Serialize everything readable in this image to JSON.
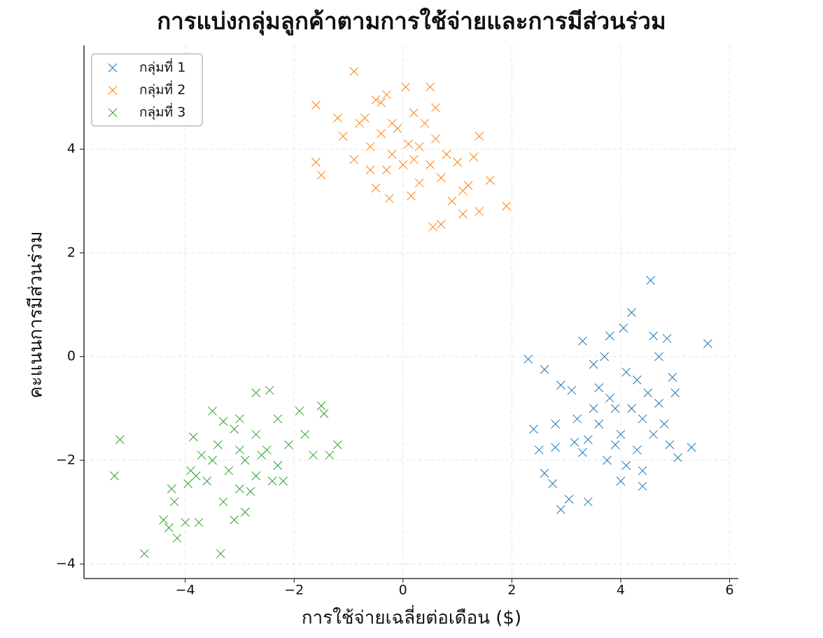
{
  "chart_data": {
    "type": "scatter",
    "title": "การแบ่งกลุ่มลูกค้าตามการใช้จ่ายและการมีส่วนร่วม",
    "x_label": "การใช้จ่ายเฉลี่ยต่อเดือน ($)",
    "y_label": "คะแนนการมีส่วนร่วม",
    "xlim": [
      -5.86,
      6.16
    ],
    "ylim": [
      -4.28,
      6.0
    ],
    "xticks": [
      {
        "value": -4,
        "label": "−4"
      },
      {
        "value": -2,
        "label": "−2"
      },
      0,
      2,
      4,
      6
    ],
    "yticks": [
      {
        "value": -4,
        "label": "−4"
      },
      {
        "value": -2,
        "label": "−2"
      },
      0,
      2,
      4
    ],
    "grid": true,
    "legend": "upper left",
    "marker": "x",
    "series": [
      {
        "name": "กลุ่มที่ 1",
        "color": "#1f77b4",
        "x": [
          2.3,
          2.6,
          2.4,
          2.5,
          2.6,
          2.75,
          2.9,
          3.05,
          3.4,
          3.3,
          3.8,
          4.05,
          4.2,
          4.55,
          5.6,
          4.6,
          4.85,
          4.7,
          4.95,
          5.0,
          5.3,
          5.05,
          4.9,
          4.4,
          4.0,
          3.75,
          3.3,
          3.15,
          2.8,
          2.8,
          2.9,
          3.1,
          3.5,
          3.7,
          4.1,
          4.3,
          4.5,
          4.2,
          3.9,
          3.6,
          3.4,
          4.0,
          4.3,
          4.6,
          4.8,
          3.8,
          4.4,
          3.6,
          4.1,
          4.4,
          3.9,
          4.7,
          3.2,
          3.5
        ],
        "values": [
          -0.05,
          -0.25,
          -1.4,
          -1.8,
          -2.25,
          -2.45,
          -2.95,
          -2.75,
          -2.8,
          0.3,
          0.4,
          0.55,
          0.85,
          1.47,
          0.25,
          0.4,
          0.35,
          0.0,
          -0.4,
          -0.7,
          -1.75,
          -1.95,
          -1.7,
          -2.5,
          -2.4,
          -2.0,
          -1.85,
          -1.65,
          -1.75,
          -1.3,
          -0.55,
          -0.65,
          -0.15,
          0.0,
          -0.3,
          -0.45,
          -0.7,
          -1.0,
          -1.0,
          -1.3,
          -1.6,
          -1.5,
          -1.8,
          -1.5,
          -1.3,
          -0.8,
          -1.2,
          -0.6,
          -2.1,
          -2.2,
          -1.7,
          -0.9,
          -1.2,
          -1.0
        ]
      },
      {
        "name": "กลุ่มที่ 2",
        "color": "#ff7f0e",
        "x": [
          -0.9,
          -1.6,
          -1.6,
          -1.5,
          -1.1,
          -0.9,
          -0.7,
          -0.5,
          -0.3,
          0.05,
          0.5,
          0.6,
          0.2,
          -0.2,
          -0.4,
          -0.6,
          0.1,
          0.3,
          0.6,
          0.8,
          1.0,
          1.3,
          1.4,
          1.6,
          1.9,
          1.4,
          1.1,
          0.7,
          0.55,
          0.15,
          -0.25,
          -0.5,
          -0.3,
          0.0,
          0.3,
          0.7,
          0.9,
          1.1,
          -0.8,
          -0.1,
          0.4,
          -0.6,
          0.2,
          -0.2,
          0.5,
          1.2,
          -1.2,
          -0.4
        ],
        "values": [
          5.5,
          4.85,
          3.75,
          3.5,
          4.25,
          3.8,
          4.6,
          4.95,
          5.05,
          5.2,
          5.2,
          4.8,
          4.7,
          4.5,
          4.3,
          4.05,
          4.1,
          4.05,
          4.2,
          3.9,
          3.75,
          3.85,
          4.25,
          3.4,
          2.9,
          2.8,
          2.75,
          2.55,
          2.5,
          3.1,
          3.05,
          3.25,
          3.6,
          3.7,
          3.35,
          3.45,
          3.0,
          3.2,
          4.5,
          4.4,
          4.5,
          3.6,
          3.8,
          3.9,
          3.7,
          3.3,
          4.6,
          4.9
        ]
      },
      {
        "name": "กลุ่มที่ 3",
        "color": "#2ca02c",
        "x": [
          -5.3,
          -5.2,
          -4.75,
          -4.4,
          -4.3,
          -4.15,
          -4.0,
          -3.75,
          -3.35,
          -3.1,
          -3.3,
          -2.9,
          -4.2,
          -4.25,
          -3.95,
          -3.8,
          -3.85,
          -3.5,
          -3.3,
          -2.7,
          -2.45,
          -2.3,
          -1.9,
          -1.5,
          -1.45,
          -1.2,
          -1.35,
          -1.65,
          -1.8,
          -2.1,
          -2.3,
          -2.4,
          -2.7,
          -2.8,
          -3.0,
          -3.2,
          -3.5,
          -3.7,
          -3.4,
          -3.0,
          -2.7,
          -2.9,
          -3.1,
          -3.6,
          -2.5,
          -2.2,
          -3.9,
          -3.0,
          -2.6
        ],
        "values": [
          -2.3,
          -1.6,
          -3.8,
          -3.15,
          -3.3,
          -3.5,
          -3.2,
          -3.2,
          -3.8,
          -3.15,
          -2.8,
          -3.0,
          -2.8,
          -2.55,
          -2.45,
          -2.3,
          -1.55,
          -1.05,
          -1.25,
          -0.7,
          -0.65,
          -1.2,
          -1.05,
          -0.95,
          -1.1,
          -1.7,
          -1.9,
          -1.9,
          -1.5,
          -1.7,
          -2.1,
          -2.4,
          -2.3,
          -2.6,
          -2.55,
          -2.2,
          -2.0,
          -1.9,
          -1.7,
          -1.8,
          -1.5,
          -2.0,
          -1.4,
          -2.4,
          -1.8,
          -2.4,
          -2.2,
          -1.2,
          -1.9
        ]
      }
    ]
  }
}
